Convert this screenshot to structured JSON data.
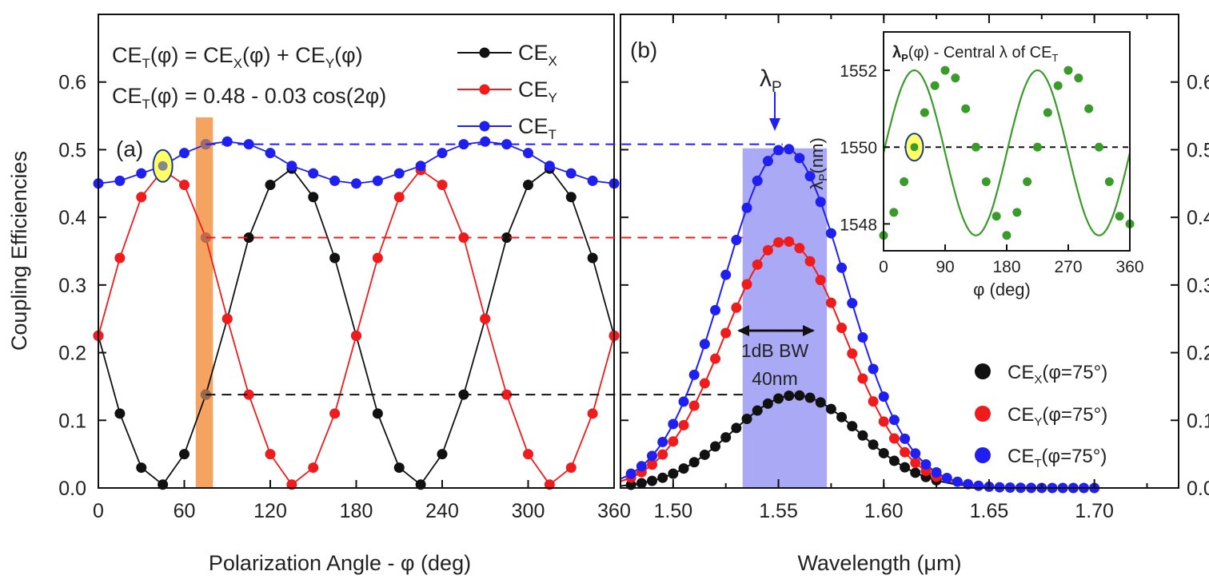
{
  "colors": {
    "black": "#111111",
    "red": "#ee1c1c",
    "blue": "#1f1ff0",
    "green": "#3a9a2a",
    "band": "#f4a460",
    "bw": "#a9a9f5",
    "marker_fill": "#ffff66",
    "marker_stroke": "#1a3a8a"
  },
  "chart_data": [
    {
      "id": "a",
      "type": "line",
      "panel_label": "(a)",
      "xlabel": "Polarization Angle - φ (deg)",
      "ylabel": "Coupling Efficiencies",
      "xlim": [
        0,
        360
      ],
      "ylim": [
        0,
        0.7
      ],
      "xticks": [
        0,
        60,
        120,
        180,
        240,
        300,
        360
      ],
      "yticks": [
        0.0,
        0.1,
        0.2,
        0.3,
        0.4,
        0.5,
        0.6
      ],
      "ytick_labels": [
        "0.0",
        "0.1",
        "0.2",
        "0.3",
        "0.4",
        "0.5",
        "0.6"
      ],
      "equations": {
        "eq1": {
          "lhs": "CE",
          "lhs_sub": "T",
          "a": "(φ) = CE",
          "a_sub": "X",
          "b": "(φ) + CE",
          "b_sub": "Y",
          "c": "(φ)"
        },
        "eq2": {
          "lhs": "CE",
          "lhs_sub": "T",
          "rest": "(φ) = 0.48 - 0.03 cos(2φ)"
        }
      },
      "legend": [
        {
          "name": "CE",
          "sub": "X",
          "color_key": "black"
        },
        {
          "name": "CE",
          "sub": "Y",
          "color_key": "red"
        },
        {
          "name": "CE",
          "sub": "T",
          "color_key": "blue"
        }
      ],
      "highlight_band": [
        68,
        80
      ],
      "highlight_angle": 45,
      "x": [
        0,
        15,
        30,
        45,
        60,
        75,
        90,
        105,
        120,
        135,
        150,
        165,
        180,
        195,
        210,
        225,
        240,
        255,
        270,
        285,
        300,
        315,
        330,
        345,
        360
      ],
      "series": [
        {
          "name": "CE_X",
          "color_key": "black",
          "values": [
            0.225,
            0.11,
            0.03,
            0.005,
            0.05,
            0.138,
            0.25,
            0.37,
            0.448,
            0.472,
            0.43,
            0.34,
            0.225,
            0.11,
            0.03,
            0.005,
            0.05,
            0.138,
            0.25,
            0.37,
            0.448,
            0.472,
            0.43,
            0.34,
            0.225
          ]
        },
        {
          "name": "CE_Y",
          "color_key": "red",
          "values": [
            0.225,
            0.34,
            0.43,
            0.47,
            0.448,
            0.37,
            0.25,
            0.138,
            0.05,
            0.005,
            0.03,
            0.11,
            0.225,
            0.34,
            0.43,
            0.47,
            0.448,
            0.37,
            0.25,
            0.138,
            0.05,
            0.005,
            0.03,
            0.11,
            0.225
          ]
        },
        {
          "name": "CE_T",
          "color_key": "blue",
          "values": [
            0.45,
            0.454,
            0.465,
            0.476,
            0.495,
            0.508,
            0.512,
            0.508,
            0.495,
            0.476,
            0.465,
            0.454,
            0.45,
            0.454,
            0.465,
            0.476,
            0.495,
            0.508,
            0.512,
            0.508,
            0.495,
            0.476,
            0.465,
            0.454,
            0.45
          ]
        }
      ]
    },
    {
      "id": "b",
      "type": "line",
      "panel_label": "(b)",
      "xlabel": "Wavelength (μm)",
      "xlim": [
        1.475,
        1.74
      ],
      "ylim": [
        0,
        0.7
      ],
      "xticks": [
        1.5,
        1.55,
        1.6,
        1.65,
        1.7
      ],
      "xtick_labels": [
        "1.50",
        "1.55",
        "1.60",
        "1.65",
        "1.70"
      ],
      "yticks": [
        0.0,
        0.1,
        0.2,
        0.3,
        0.4,
        0.5,
        0.6
      ],
      "ytick_labels": [
        "0.0",
        "0.1",
        "0.2",
        "0.3",
        "0.4",
        "0.5",
        "0.6"
      ],
      "peak_label": "λ",
      "peak_label_sub": "P",
      "peak_wavelength": 1.552,
      "bandwidth_range": [
        1.533,
        1.573
      ],
      "bandwidth_label_1": "1dB BW",
      "bandwidth_label_2": "40nm",
      "legend": [
        {
          "name": "CE",
          "sub": "X",
          "rest": "(φ=75°)",
          "color_key": "black"
        },
        {
          "name": "CE",
          "sub": "Y",
          "rest": "(φ=75°)",
          "color_key": "red"
        },
        {
          "name": "CE",
          "sub": "T",
          "rest": "(φ=75°)",
          "color_key": "blue"
        }
      ],
      "series": [
        {
          "name": "CE_X(φ=75°)",
          "color_key": "black",
          "peak": 0.137,
          "center": 1.558,
          "sigma": 0.03,
          "x_start": 1.48,
          "x_end": 1.625,
          "x_step": 0.005
        },
        {
          "name": "CE_Y(φ=75°)",
          "color_key": "red",
          "peak": 0.365,
          "center": 1.553,
          "sigma": 0.029,
          "x_start": 1.48,
          "x_end": 1.625,
          "x_step": 0.005
        },
        {
          "name": "CE_T(φ=75°)",
          "color_key": "blue",
          "peak": 0.502,
          "center": 1.553,
          "sigma": 0.029,
          "x_start": 1.48,
          "x_end": 1.7,
          "x_step": 0.005
        }
      ]
    },
    {
      "id": "inset",
      "type": "line",
      "title_main": "λ",
      "title_sub": "P",
      "title_rest": "(φ) - Central λ of CE",
      "title_tail_sub": "T",
      "xlabel": "φ (deg)",
      "ylabel": "λ",
      "ylabel_sub": "P",
      "ylabel_rest": "(nm)",
      "xlim": [
        0,
        360
      ],
      "ylim": [
        1547.3,
        1553.0
      ],
      "xticks": [
        0,
        90,
        180,
        270,
        360
      ],
      "yticks": [
        1548,
        1550,
        1552
      ],
      "reference_value": 1550,
      "highlight_angle": 45,
      "x": [
        0,
        15,
        30,
        45,
        60,
        75,
        90,
        105,
        120,
        135,
        150,
        165,
        180,
        195,
        210,
        225,
        240,
        255,
        270,
        285,
        300,
        315,
        330,
        345,
        360
      ],
      "series": [
        {
          "name": "λP",
          "color_key": "green",
          "values": [
            1547.7,
            1548.3,
            1549.1,
            1550.0,
            1550.9,
            1551.6,
            1552.0,
            1551.8,
            1551.0,
            1550.0,
            1549.1,
            1548.2,
            1547.7,
            1548.3,
            1549.1,
            1550.0,
            1550.9,
            1551.6,
            1552.0,
            1551.8,
            1551.0,
            1550.0,
            1549.1,
            1548.2,
            1548.0
          ]
        }
      ]
    }
  ]
}
